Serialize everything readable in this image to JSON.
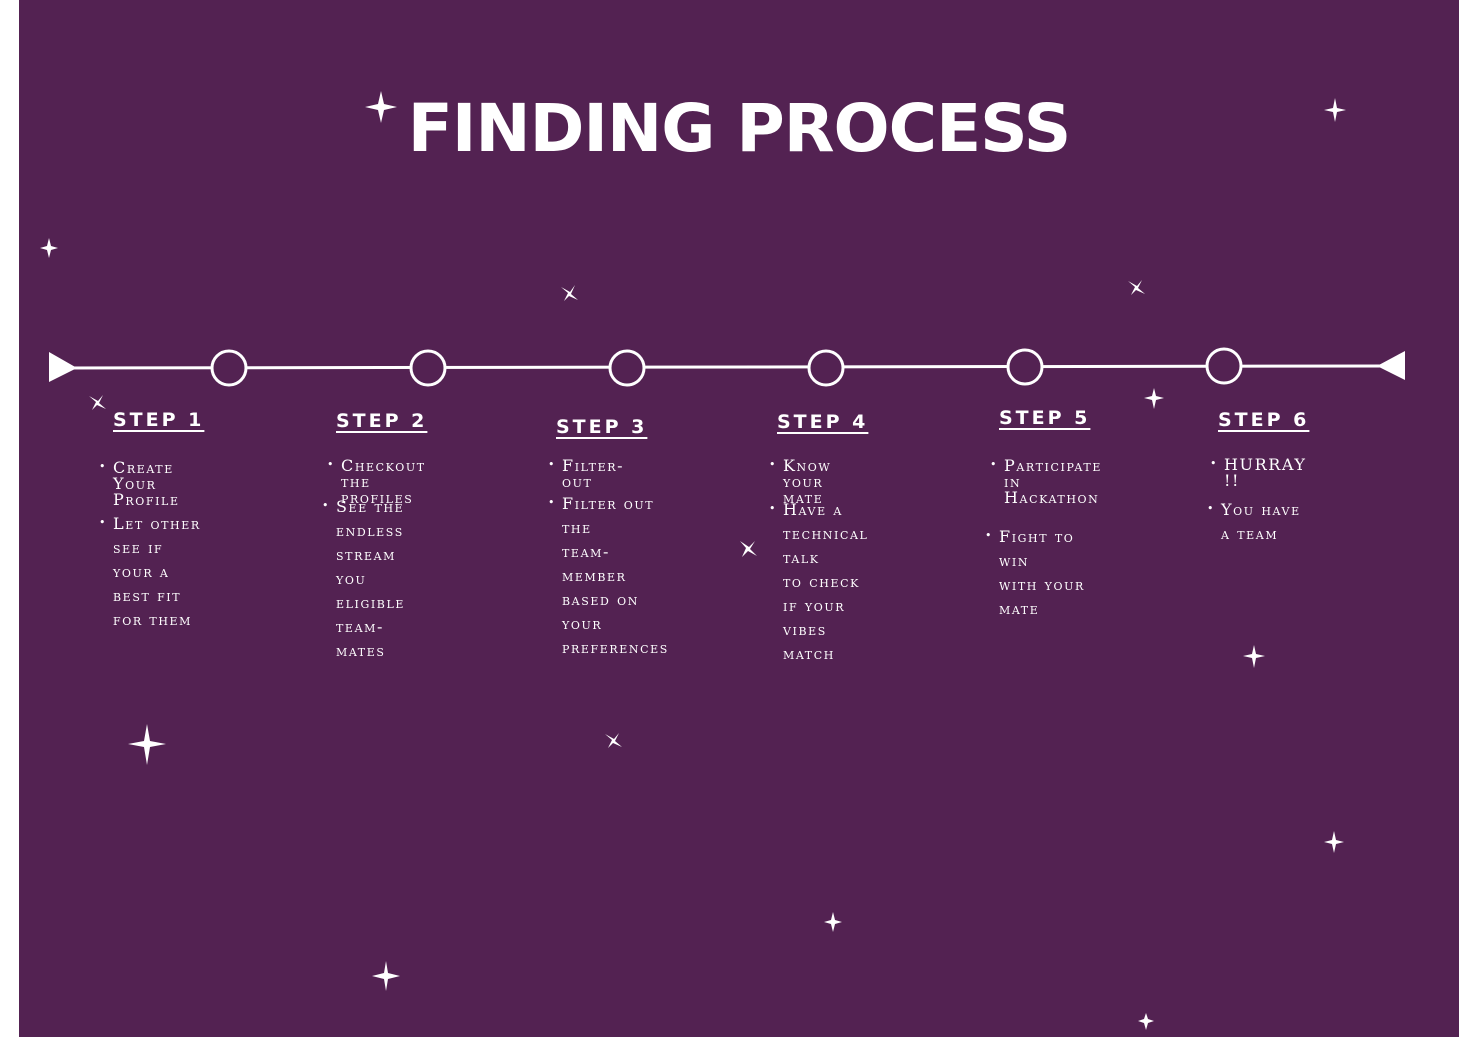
{
  "title": "FINDING PROCESS",
  "colors": {
    "background": "#532252",
    "foreground": "#ffffff"
  },
  "steps": [
    {
      "label": "STEP 1",
      "bullets": [
        "Create Your\nProfile",
        "Let other see if\nyour a best fit\nfor them"
      ]
    },
    {
      "label": "STEP 2",
      "bullets": [
        "Checkout the\nprofiles",
        "See the endless\nstream you\neligible team-\nmates"
      ]
    },
    {
      "label": "STEP 3",
      "bullets": [
        "Filter-out",
        "Filter out the\nteam-member\nbased on your\npreferences"
      ]
    },
    {
      "label": "STEP 4",
      "bullets": [
        "Know your\nmate",
        "Have a\ntechnical talk\nto check if your\nvibes match"
      ]
    },
    {
      "label": "STEP 5",
      "bullets": [
        "Participate in\nHackathon",
        "Fight to win\nwith your mate"
      ]
    },
    {
      "label": "STEP 6",
      "bullets": [
        "HURRAY !!",
        "You have a team"
      ]
    }
  ]
}
